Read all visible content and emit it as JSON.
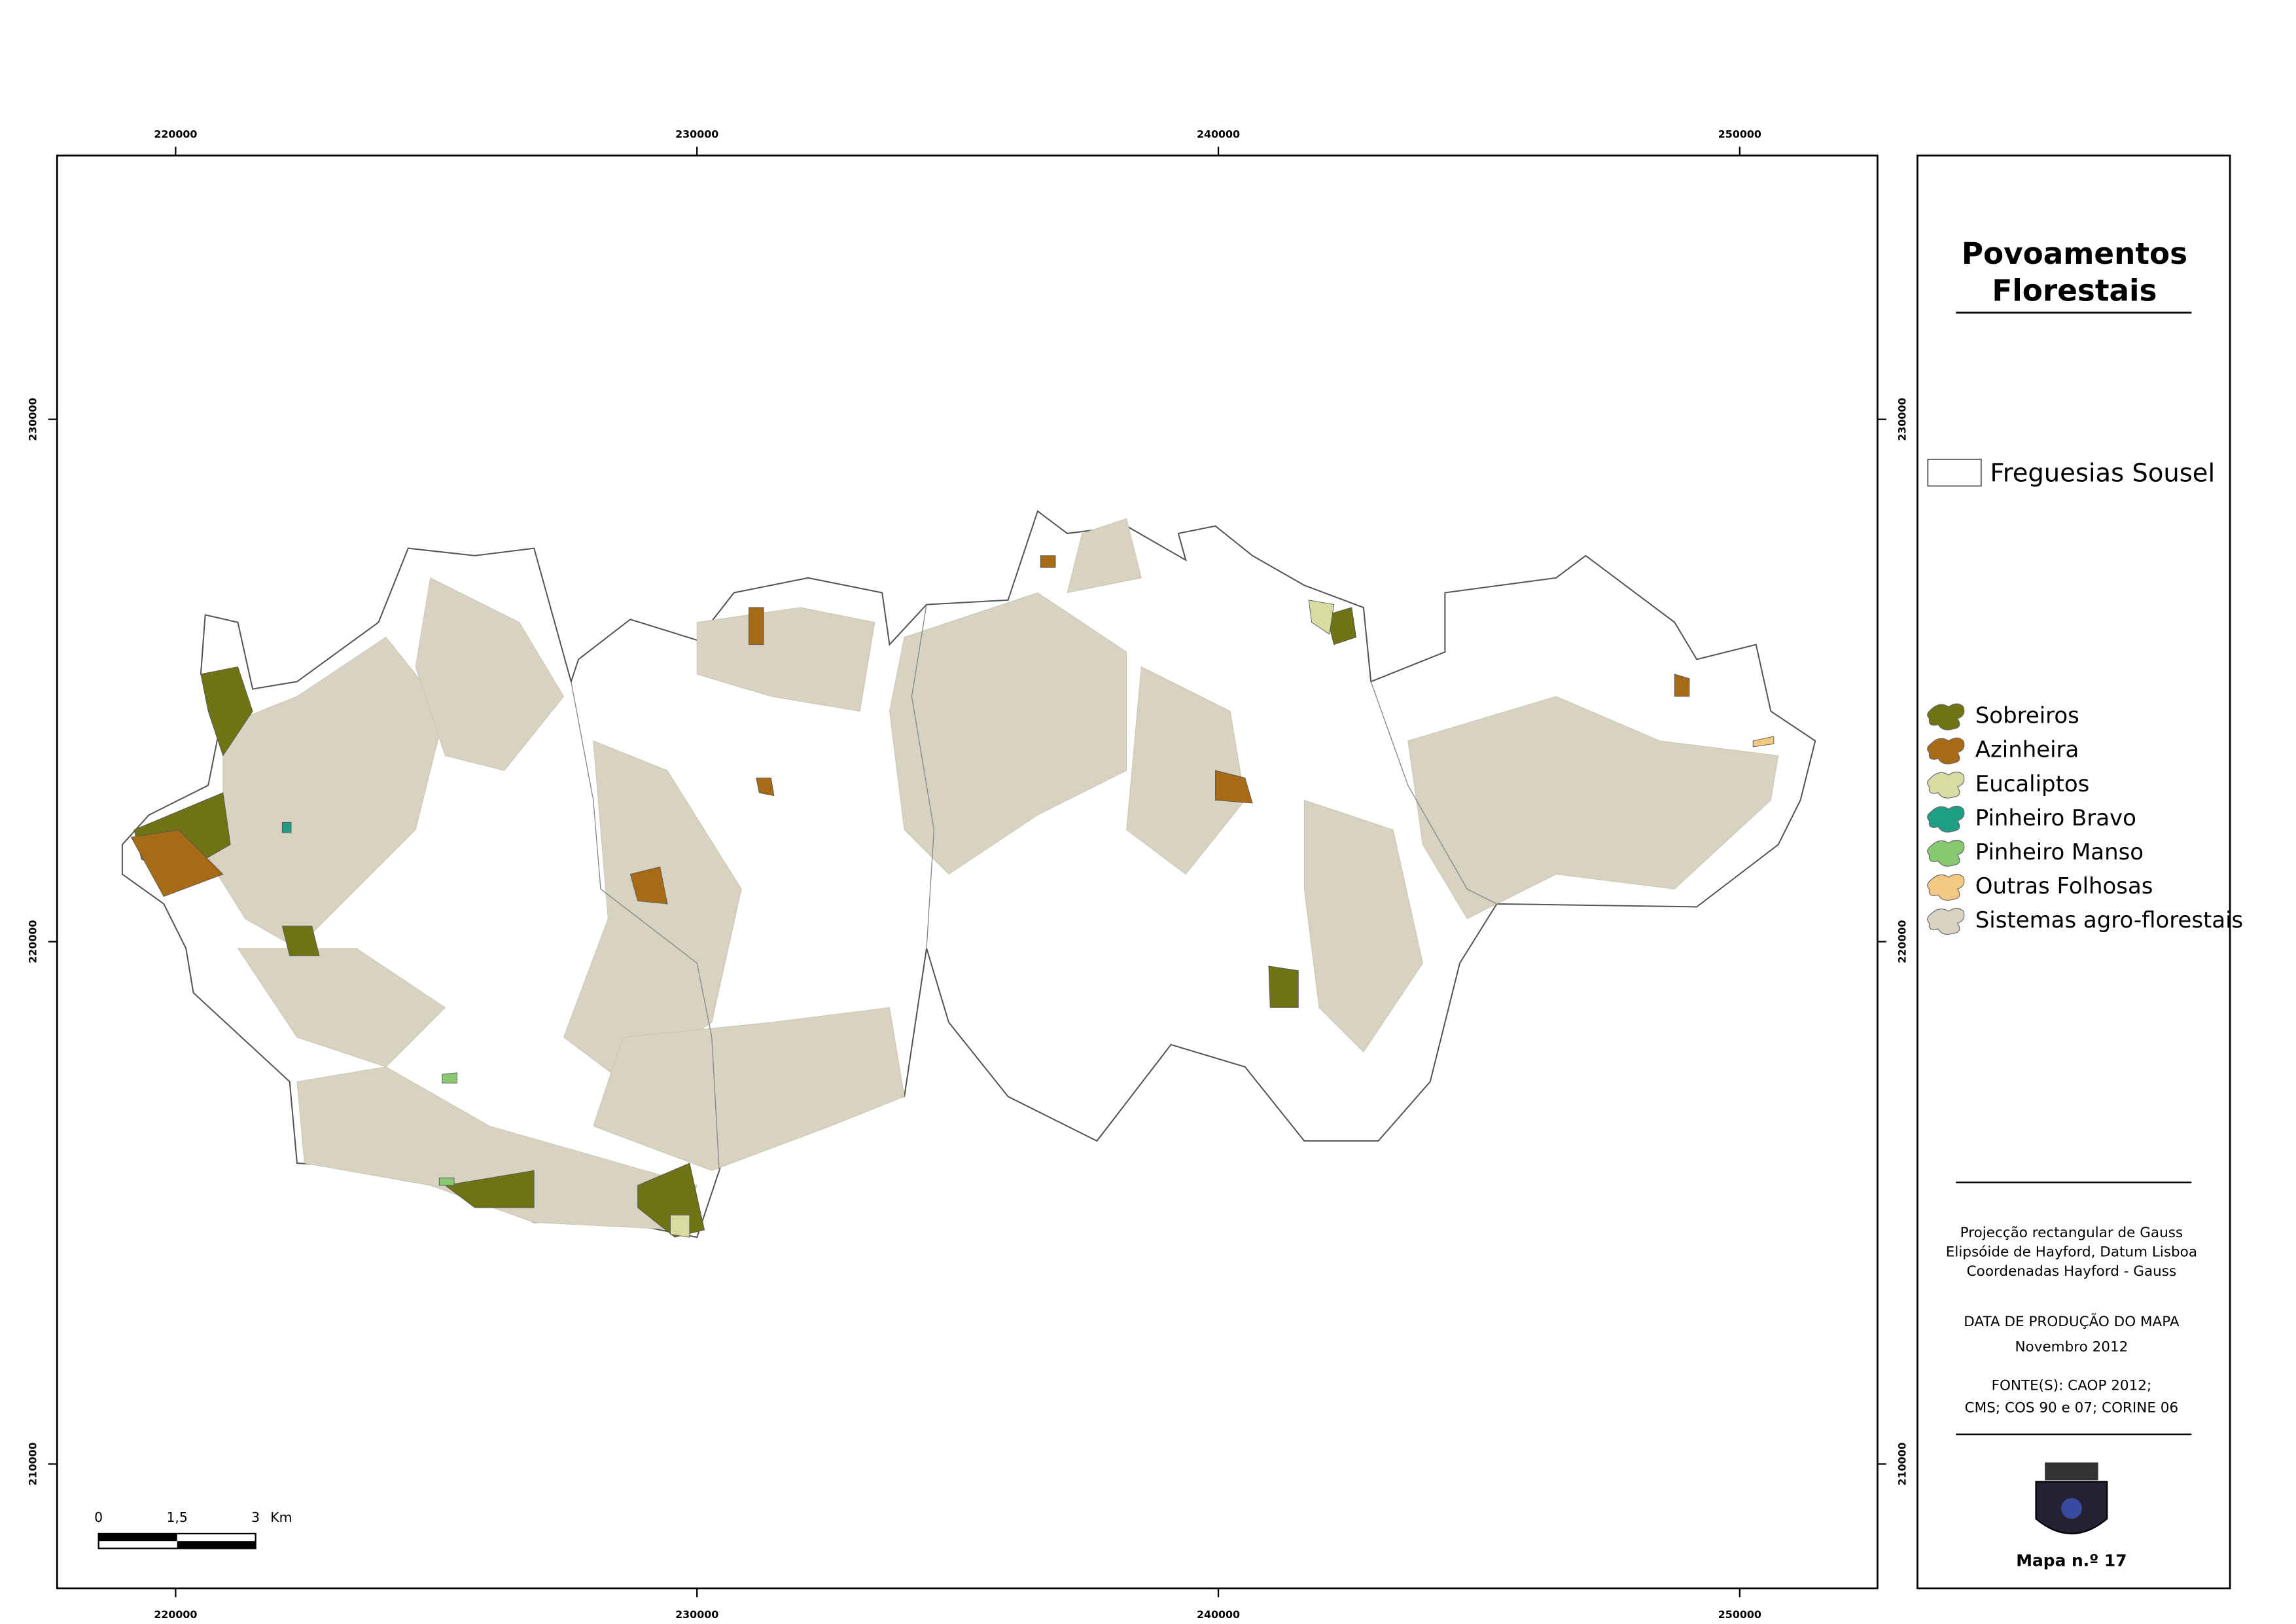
{
  "map": {
    "eastings": [
      "220000",
      "230000",
      "240000",
      "250000"
    ],
    "northings": [
      "230000",
      "220000",
      "210000"
    ],
    "scale_bar": {
      "labels": [
        "0",
        "1,5",
        "3"
      ],
      "unit": "Km"
    }
  },
  "legend": {
    "title_lines": [
      "Povoamentos",
      "Florestais"
    ],
    "boundary": "Freguesias Sousel",
    "items": [
      {
        "label": "Sobreiros",
        "color": "#6e7314"
      },
      {
        "label": "Azinheira",
        "color": "#a86a14"
      },
      {
        "label": "Eucaliptos",
        "color": "#d8dca0"
      },
      {
        "label": "Pinheiro Bravo",
        "color": "#1f9e86"
      },
      {
        "label": "Pinheiro Manso",
        "color": "#88c870"
      },
      {
        "label": "Outras Folhosas",
        "color": "#f2c882"
      },
      {
        "label": "Sistemas agro-florestais",
        "color": "#d8d2c0"
      }
    ]
  },
  "notes": [
    "Projecção rectangular de Gauss",
    "Elipsóide de Hayford, Datum Lisboa",
    "Coordenadas Hayford - Gauss",
    "DATA DE PRODUÇÃO DO MAPA",
    "Novembro 2012",
    "FONTE(S): CAOP 2012;",
    "CMS; COS 90 e 07; CORINE 06"
  ],
  "map_number": "Mapa n.º 17"
}
